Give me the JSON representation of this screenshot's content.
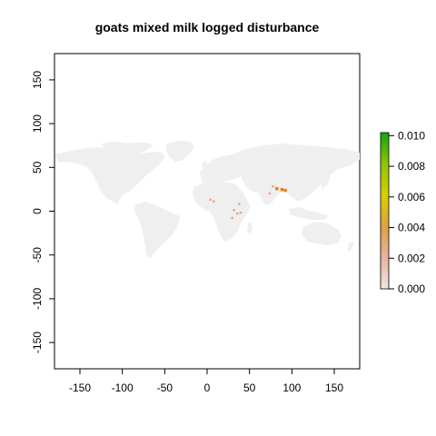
{
  "title": "goats mixed milk logged disturbance",
  "colors": {
    "land": "#efefef",
    "background": "#ffffff",
    "hotspot_low": "#e9a886",
    "hotspot_high": "#e5801f",
    "colorbar_stops": [
      "#ece7e4",
      "#e8b39c",
      "#e2a040",
      "#d4d000",
      "#8ec400",
      "#11a611"
    ]
  },
  "chart_data": {
    "type": "heatmap",
    "title": "goats mixed milk logged disturbance",
    "xlim": [
      -180,
      180
    ],
    "ylim": [
      -180,
      180
    ],
    "x_ticks": [
      -150,
      -100,
      -50,
      0,
      50,
      100,
      150
    ],
    "y_ticks": [
      -150,
      -100,
      -50,
      0,
      50,
      100,
      150
    ],
    "x_tick_labels": [
      "-150",
      "-100",
      "-50",
      "0",
      "50",
      "100",
      "150"
    ],
    "y_tick_labels": [
      "-150",
      "-100",
      "-50",
      "0",
      "50",
      "100",
      "150"
    ],
    "colorbar": {
      "min": 0,
      "max": 0.0102,
      "ticks": [
        0.0,
        0.002,
        0.004,
        0.006,
        0.008,
        0.01
      ],
      "tick_labels": [
        "0.000",
        "0.002",
        "0.004",
        "0.006",
        "0.008",
        "0.010"
      ]
    },
    "hotspots": [
      {
        "lon": 88,
        "lat": 25,
        "value": 0.002
      },
      {
        "lon": 82,
        "lat": 26,
        "value": 0.0012
      },
      {
        "lon": 78,
        "lat": 28,
        "value": 0.0009
      },
      {
        "lon": 92,
        "lat": 24,
        "value": 0.0011
      },
      {
        "lon": 74,
        "lat": 20,
        "value": 0.0006
      },
      {
        "lon": 38,
        "lat": 8,
        "value": 0.0008
      },
      {
        "lon": 32,
        "lat": 1,
        "value": 0.0006
      },
      {
        "lon": 36,
        "lat": -3,
        "value": 0.0005
      },
      {
        "lon": 30,
        "lat": -8,
        "value": 0.0007
      },
      {
        "lon": 8,
        "lat": 11,
        "value": 0.0006
      },
      {
        "lon": 4,
        "lat": 13,
        "value": 0.0005
      },
      {
        "lon": 40,
        "lat": -2,
        "value": 0.0004
      }
    ]
  }
}
